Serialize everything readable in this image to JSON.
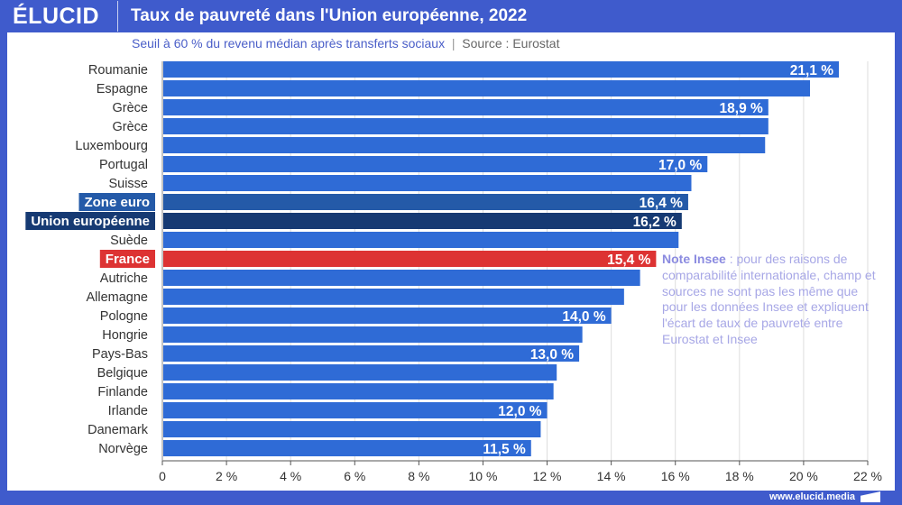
{
  "header": {
    "logo": "ÉLUCID",
    "title": "Taux de pauvreté dans l'Union européenne, 2022"
  },
  "subtitle": "Seuil à 60 % du revenu médian après transferts sociaux",
  "source": "Source : Eurostat",
  "note": {
    "label": "Note Insee",
    "text": " : pour des raisons de comparabilité internationale, champ et sources ne sont pas les même que pour les données Insee et expliquent l'écart de taux de pauvreté entre Eurostat et Insee"
  },
  "footer": "www.elucid.media",
  "colors": {
    "bar": "#2f6bd6",
    "zone_euro": "#245aa8",
    "ue": "#163a73",
    "france": "#dd3333",
    "header": "#3f5bcc"
  },
  "chart_data": {
    "type": "bar",
    "orientation": "horizontal",
    "categories": [
      "Roumanie",
      "Espagne",
      "Grèce",
      "Grèce",
      "Luxembourg",
      "Portugal",
      "Suisse",
      "Zone euro",
      "Union européenne",
      "Suède",
      "France",
      "Autriche",
      "Allemagne",
      "Pologne",
      "Hongrie",
      "Pays-Bas",
      "Belgique",
      "Finlande",
      "Irlande",
      "Danemark",
      "Norvège"
    ],
    "values": [
      21.1,
      20.2,
      18.9,
      18.9,
      18.8,
      17.0,
      16.5,
      16.4,
      16.2,
      16.1,
      15.4,
      14.9,
      14.4,
      14.0,
      13.1,
      13.0,
      12.3,
      12.2,
      12.0,
      11.8,
      11.5
    ],
    "data_labels": [
      "21,1 %",
      "",
      "18,9 %",
      "",
      "",
      "17,0 %",
      "",
      "16,4 %",
      "16,2 %",
      "",
      "15,4 %",
      "",
      "",
      "14,0 %",
      "",
      "13,0 %",
      "",
      "",
      "12,0 %",
      "",
      "11,5 %"
    ],
    "highlight": {
      "Zone euro": "zone_euro",
      "Union européenne": "ue",
      "France": "france"
    },
    "xlim": [
      0,
      22
    ],
    "xticks": [
      "0",
      "2 %",
      "4 %",
      "6 %",
      "8 %",
      "10 %",
      "12 %",
      "14 %",
      "16 %",
      "18 %",
      "20 %",
      "22 %"
    ],
    "grid": true
  }
}
